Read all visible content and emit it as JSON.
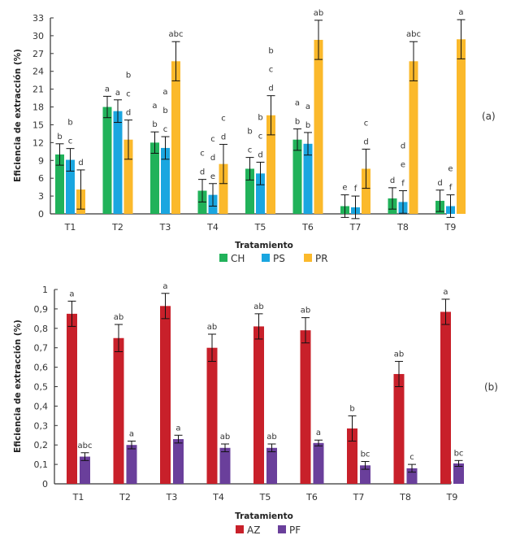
{
  "chart_data": [
    {
      "type": "bar",
      "panel_label": "(a)",
      "title": "",
      "xlabel": "Tratamiento",
      "ylabel": "Eficiencia de extracción (%)",
      "ylim": [
        0,
        33
      ],
      "yticks": [
        0,
        3,
        6,
        9,
        12,
        15,
        18,
        21,
        24,
        27,
        30,
        33
      ],
      "ytick_labels": [
        "0",
        "3",
        "6",
        "9",
        "12",
        "15",
        "18",
        "21",
        "24",
        "27",
        "30",
        "33"
      ],
      "grid": false,
      "legend_position": "bottom",
      "categories": [
        "T1",
        "T2",
        "T3",
        "T4",
        "T5",
        "T6",
        "T7",
        "T8",
        "T9"
      ],
      "series": [
        {
          "name": "CH",
          "color": "#21b25a",
          "values": [
            10.0,
            18.0,
            12.0,
            3.9,
            7.6,
            12.5,
            1.3,
            2.6,
            2.2
          ],
          "errors": [
            1.8,
            1.8,
            1.8,
            1.9,
            1.9,
            1.8,
            1.9,
            1.8,
            1.8
          ],
          "letters": [
            "b",
            "a",
            "a\nb",
            "c\nd",
            "b\nc",
            "a\nb",
            "e",
            "d",
            "d"
          ]
        },
        {
          "name": "PS",
          "color": "#1aa6e0",
          "values": [
            9.1,
            17.3,
            11.1,
            3.2,
            6.8,
            11.8,
            1.1,
            2.0,
            1.3
          ],
          "errors": [
            1.9,
            1.9,
            1.9,
            1.9,
            1.9,
            1.9,
            1.9,
            1.9,
            1.9
          ],
          "letters": [
            "b\nc",
            "a",
            "a\nb\nc",
            "c\nd\ne",
            "b\nc\nd",
            "a\nb",
            "f",
            "d\ne\nf",
            "e\nf"
          ]
        },
        {
          "name": "PR",
          "color": "#fbb92b",
          "values": [
            4.1,
            12.5,
            25.7,
            8.4,
            16.6,
            29.3,
            7.6,
            25.7,
            29.4
          ],
          "errors": [
            3.3,
            3.3,
            3.3,
            3.3,
            3.3,
            3.3,
            3.3,
            3.3,
            3.3
          ],
          "letters": [
            "d",
            "b\nc\nd",
            "abc",
            "c\nd",
            "b\nc\nd",
            "ab",
            "c\nd",
            "abc",
            "a"
          ]
        }
      ]
    },
    {
      "type": "bar",
      "panel_label": "(b)",
      "title": "",
      "xlabel": "Tratamiento",
      "ylabel": "Eficiencia de extracción (%)",
      "ylim": [
        0,
        1
      ],
      "yticks": [
        0,
        0.1,
        0.2,
        0.3,
        0.4,
        0.5,
        0.6,
        0.7,
        0.8,
        0.9,
        1
      ],
      "ytick_labels": [
        "0",
        "0,1",
        "0,2",
        "0,3",
        "0,4",
        "0,5",
        "0,6",
        "0,7",
        "0,8",
        "0,9",
        "1"
      ],
      "grid": false,
      "legend_position": "bottom",
      "categories": [
        "T1",
        "T2",
        "T3",
        "T4",
        "T5",
        "T6",
        "T7",
        "T8",
        "T9"
      ],
      "series": [
        {
          "name": "AZ",
          "color": "#c8202a",
          "values": [
            0.875,
            0.75,
            0.915,
            0.7,
            0.81,
            0.79,
            0.285,
            0.565,
            0.885
          ],
          "errors": [
            0.065,
            0.07,
            0.065,
            0.07,
            0.065,
            0.065,
            0.065,
            0.065,
            0.065
          ],
          "letters": [
            "a",
            "ab",
            "a",
            "ab",
            "ab",
            "ab",
            "b",
            "ab",
            "a"
          ]
        },
        {
          "name": "PF",
          "color": "#6a3f9b",
          "values": [
            0.14,
            0.2,
            0.23,
            0.185,
            0.185,
            0.21,
            0.095,
            0.08,
            0.105
          ],
          "errors": [
            0.02,
            0.02,
            0.02,
            0.02,
            0.02,
            0.015,
            0.02,
            0.02,
            0.015
          ],
          "letters": [
            "abc",
            "a",
            "a",
            "ab",
            "ab",
            "a",
            "bc",
            "c",
            "bc"
          ]
        }
      ]
    }
  ]
}
